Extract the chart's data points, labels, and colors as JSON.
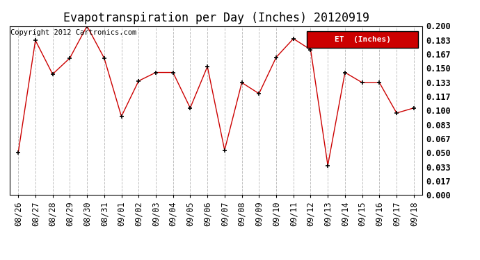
{
  "title": "Evapotranspiration per Day (Inches) 20120919",
  "copyright_text": "Copyright 2012 Cartronics.com",
  "legend_label": "ET  (Inches)",
  "x_labels": [
    "08/26",
    "08/27",
    "08/28",
    "08/29",
    "08/30",
    "08/31",
    "09/01",
    "09/02",
    "09/03",
    "09/04",
    "09/05",
    "09/06",
    "09/07",
    "09/08",
    "09/09",
    "09/10",
    "09/11",
    "09/12",
    "09/13",
    "09/14",
    "09/15",
    "09/16",
    "09/17",
    "09/18"
  ],
  "y_values": [
    0.05,
    0.183,
    0.143,
    0.162,
    0.2,
    0.162,
    0.093,
    0.135,
    0.145,
    0.145,
    0.103,
    0.152,
    0.053,
    0.133,
    0.12,
    0.163,
    0.185,
    0.172,
    0.035,
    0.145,
    0.133,
    0.133,
    0.097,
    0.103
  ],
  "line_color": "#cc0000",
  "marker_color": "#000000",
  "background_color": "#ffffff",
  "grid_color": "#c0c0c0",
  "ylim": [
    0.0,
    0.2
  ],
  "yticks": [
    0.0,
    0.017,
    0.033,
    0.05,
    0.067,
    0.083,
    0.1,
    0.117,
    0.133,
    0.15,
    0.167,
    0.183,
    0.2
  ],
  "title_fontsize": 12,
  "tick_fontsize": 8.5,
  "copyright_fontsize": 7.5,
  "legend_bg_color": "#cc0000",
  "legend_text_color": "#ffffff",
  "legend_fontsize": 8
}
